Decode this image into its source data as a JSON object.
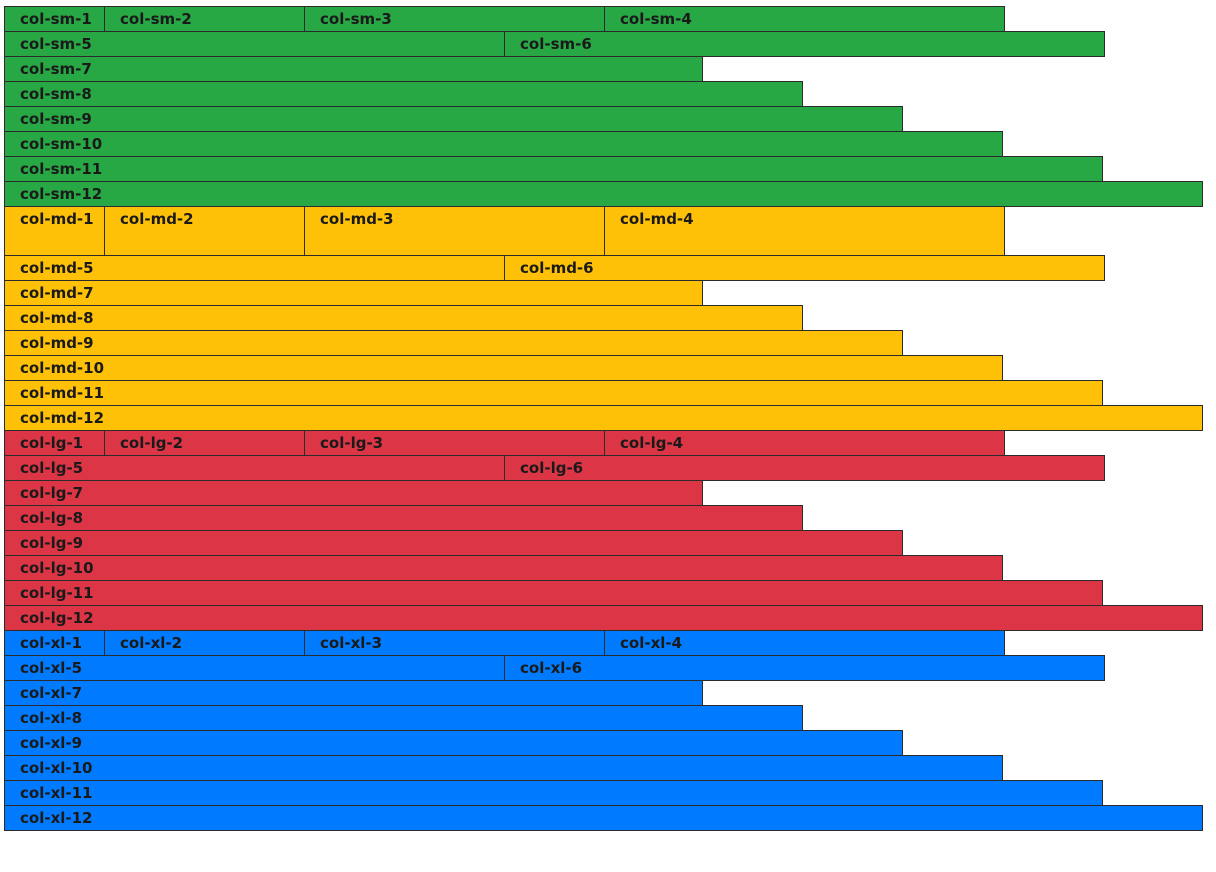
{
  "colors": {
    "sm": "#28a745",
    "md": "#ffc107",
    "lg": "#dc3545",
    "xl": "#007bff"
  },
  "sm": {
    "c1": "col-sm-1",
    "c2": "col-sm-2",
    "c3": "col-sm-3",
    "c4": "col-sm-4",
    "c5": "col-sm-5",
    "c6": "col-sm-6",
    "c7": "col-sm-7",
    "c8": "col-sm-8",
    "c9": "col-sm-9",
    "c10": "col-sm-10",
    "c11": "col-sm-11",
    "c12": "col-sm-12"
  },
  "md": {
    "c1": "col-md-1",
    "c2": "col-md-2",
    "c3": "col-md-3",
    "c4": "col-md-4",
    "c5": "col-md-5",
    "c6": "col-md-6",
    "c7": "col-md-7",
    "c8": "col-md-8",
    "c9": "col-md-9",
    "c10": "col-md-10",
    "c11": "col-md-11",
    "c12": "col-md-12"
  },
  "lg": {
    "c1": "col-lg-1",
    "c2": "col-lg-2",
    "c3": "col-lg-3",
    "c4": "col-lg-4",
    "c5": "col-lg-5",
    "c6": "col-lg-6",
    "c7": "col-lg-7",
    "c8": "col-lg-8",
    "c9": "col-lg-9",
    "c10": "col-lg-10",
    "c11": "col-lg-11",
    "c12": "col-lg-12"
  },
  "xl": {
    "c1": "col-xl-1",
    "c2": "col-xl-2",
    "c3": "col-xl-3",
    "c4": "col-xl-4",
    "c5": "col-xl-5",
    "c6": "col-xl-6",
    "c7": "col-xl-7",
    "c8": "col-xl-8",
    "c9": "col-xl-9",
    "c10": "col-xl-10",
    "c11": "col-xl-11",
    "c12": "col-xl-12"
  }
}
